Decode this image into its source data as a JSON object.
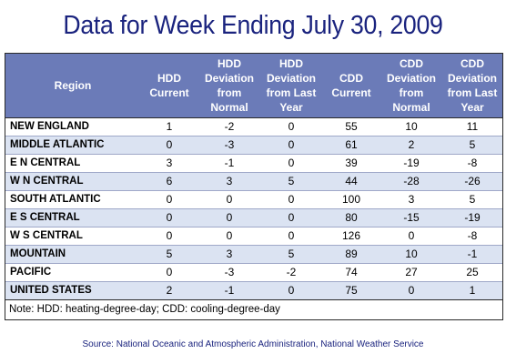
{
  "title": "Data for Week Ending July 30, 2009",
  "columns": [
    "Region",
    "HDD Current",
    "HDD Deviation from Normal",
    "HDD Deviation from Last Year",
    "CDD Current",
    "CDD Deviation from Normal",
    "CDD Deviation from Last Year"
  ],
  "rows": [
    [
      "NEW ENGLAND",
      "1",
      "-2",
      "0",
      "55",
      "10",
      "11"
    ],
    [
      "MIDDLE ATLANTIC",
      "0",
      "-3",
      "0",
      "61",
      "2",
      "5"
    ],
    [
      "E N CENTRAL",
      "3",
      "-1",
      "0",
      "39",
      "-19",
      "-8"
    ],
    [
      "W N CENTRAL",
      "6",
      "3",
      "5",
      "44",
      "-28",
      "-26"
    ],
    [
      "SOUTH ATLANTIC",
      "0",
      "0",
      "0",
      "100",
      "3",
      "5"
    ],
    [
      "E S CENTRAL",
      "0",
      "0",
      "0",
      "80",
      "-15",
      "-19"
    ],
    [
      "W S CENTRAL",
      "0",
      "0",
      "0",
      "126",
      "0",
      "-8"
    ],
    [
      "MOUNTAIN",
      "5",
      "3",
      "5",
      "89",
      "10",
      "-1"
    ],
    [
      "PACIFIC",
      "0",
      "-3",
      "-2",
      "74",
      "27",
      "25"
    ],
    [
      "UNITED STATES",
      "2",
      "-1",
      "0",
      "75",
      "0",
      "1"
    ]
  ],
  "note": "Note: HDD: heating-degree-day; CDD: cooling-degree-day",
  "source": "Source:  National Oceanic and Atmospheric Administration, National Weather Service",
  "colors": {
    "header_bg": "#6b7bb8",
    "alt_row_bg": "#dbe3f2",
    "title_color": "#1a237e"
  },
  "chart_data": {
    "type": "table",
    "title": "Data for Week Ending July 30, 2009",
    "columns": [
      "Region",
      "HDD Current",
      "HDD Deviation from Normal",
      "HDD Deviation from Last Year",
      "CDD Current",
      "CDD Deviation from Normal",
      "CDD Deviation from Last Year"
    ],
    "rows": [
      [
        "NEW ENGLAND",
        1,
        -2,
        0,
        55,
        10,
        11
      ],
      [
        "MIDDLE ATLANTIC",
        0,
        -3,
        0,
        61,
        2,
        5
      ],
      [
        "E N CENTRAL",
        3,
        -1,
        0,
        39,
        -19,
        -8
      ],
      [
        "W N CENTRAL",
        6,
        3,
        5,
        44,
        -28,
        -26
      ],
      [
        "SOUTH ATLANTIC",
        0,
        0,
        0,
        100,
        3,
        5
      ],
      [
        "E S CENTRAL",
        0,
        0,
        0,
        80,
        -15,
        -19
      ],
      [
        "W S CENTRAL",
        0,
        0,
        0,
        126,
        0,
        -8
      ],
      [
        "MOUNTAIN",
        5,
        3,
        5,
        89,
        10,
        -1
      ],
      [
        "PACIFIC",
        0,
        -3,
        -2,
        74,
        27,
        25
      ],
      [
        "UNITED STATES",
        2,
        -1,
        0,
        75,
        0,
        1
      ]
    ]
  }
}
